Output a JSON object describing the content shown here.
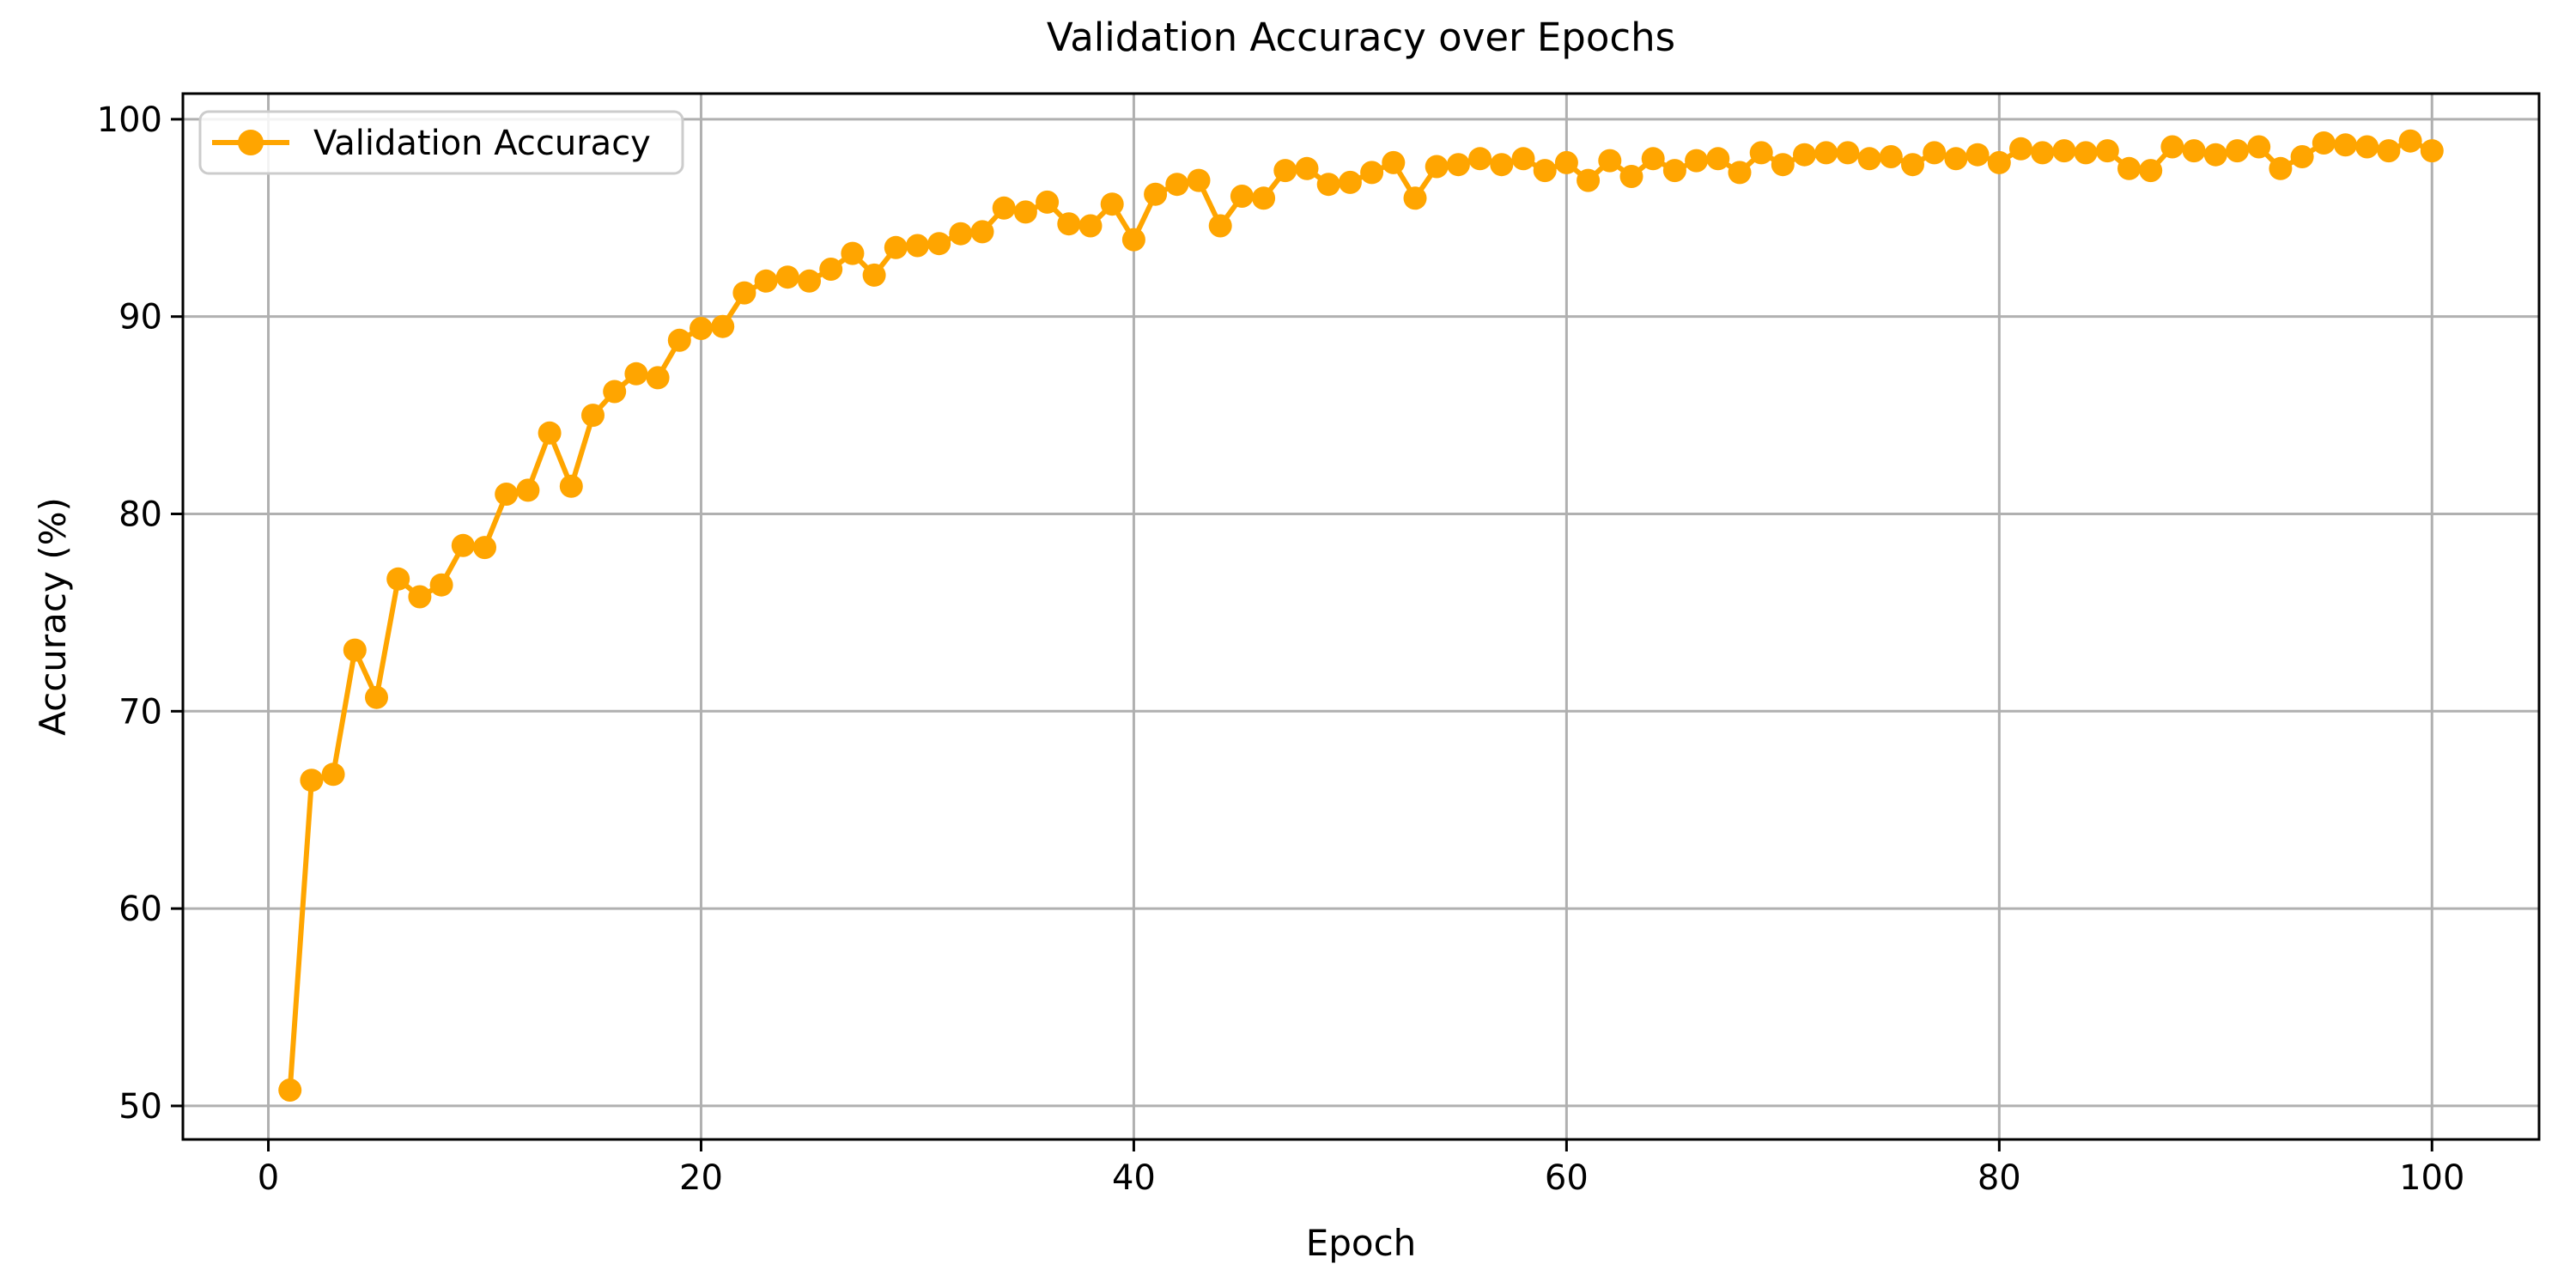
{
  "figure": {
    "background": "#ffffff"
  },
  "chart_data": {
    "type": "line",
    "title": "Validation Accuracy over Epochs",
    "xlabel": "Epoch",
    "ylabel": "Accuracy (%)",
    "legend_label": "Validation Accuracy",
    "legend_position": "upper left",
    "grid": true,
    "x_ticks": [
      0,
      20,
      40,
      60,
      80,
      100
    ],
    "y_ticks": [
      50,
      60,
      70,
      80,
      90,
      100
    ],
    "xlim": [
      -3.95,
      104.95
    ],
    "ylim": [
      48.3,
      101.3
    ],
    "colors": {
      "line": "#FFA500",
      "grid": "#b0b0b0",
      "axis": "#000000",
      "legend_border": "#cccccc",
      "background": "#ffffff"
    },
    "series": [
      {
        "name": "Validation Accuracy",
        "marker": "circle",
        "line_style": "solid",
        "x": [
          1,
          2,
          3,
          4,
          5,
          6,
          7,
          8,
          9,
          10,
          11,
          12,
          13,
          14,
          15,
          16,
          17,
          18,
          19,
          20,
          21,
          22,
          23,
          24,
          25,
          26,
          27,
          28,
          29,
          30,
          31,
          32,
          33,
          34,
          35,
          36,
          37,
          38,
          39,
          40,
          41,
          42,
          43,
          44,
          45,
          46,
          47,
          48,
          49,
          50,
          51,
          52,
          53,
          54,
          55,
          56,
          57,
          58,
          59,
          60,
          61,
          62,
          63,
          64,
          65,
          66,
          67,
          68,
          69,
          70,
          71,
          72,
          73,
          74,
          75,
          76,
          77,
          78,
          79,
          80,
          81,
          82,
          83,
          84,
          85,
          86,
          87,
          88,
          89,
          90,
          91,
          92,
          93,
          94,
          95,
          96,
          97,
          98,
          99,
          100
        ],
        "values": [
          50.8,
          66.5,
          66.8,
          73.1,
          70.7,
          76.7,
          75.8,
          76.4,
          78.4,
          78.3,
          81.0,
          81.2,
          84.1,
          81.4,
          85.0,
          86.2,
          87.1,
          86.9,
          88.8,
          89.4,
          89.5,
          91.2,
          91.8,
          92.0,
          91.8,
          92.4,
          93.2,
          92.1,
          93.5,
          93.6,
          93.7,
          94.2,
          94.3,
          95.5,
          95.3,
          95.8,
          94.7,
          94.6,
          95.7,
          93.9,
          96.2,
          96.7,
          96.9,
          94.6,
          96.1,
          96.0,
          97.4,
          97.5,
          96.7,
          96.8,
          97.3,
          97.8,
          96.0,
          97.6,
          97.7,
          98.0,
          97.7,
          98.0,
          97.4,
          97.8,
          96.9,
          97.9,
          97.1,
          98.0,
          97.4,
          97.9,
          98.0,
          97.3,
          98.3,
          97.7,
          98.2,
          98.3,
          98.3,
          98.0,
          98.1,
          97.7,
          98.3,
          98.0,
          98.2,
          97.8,
          98.5,
          98.3,
          98.4,
          98.3,
          98.4,
          97.5,
          97.4,
          98.6,
          98.4,
          98.2,
          98.4,
          98.6,
          97.5,
          98.1,
          98.8,
          98.7,
          98.6,
          98.4,
          98.9,
          98.4
        ]
      }
    ]
  }
}
